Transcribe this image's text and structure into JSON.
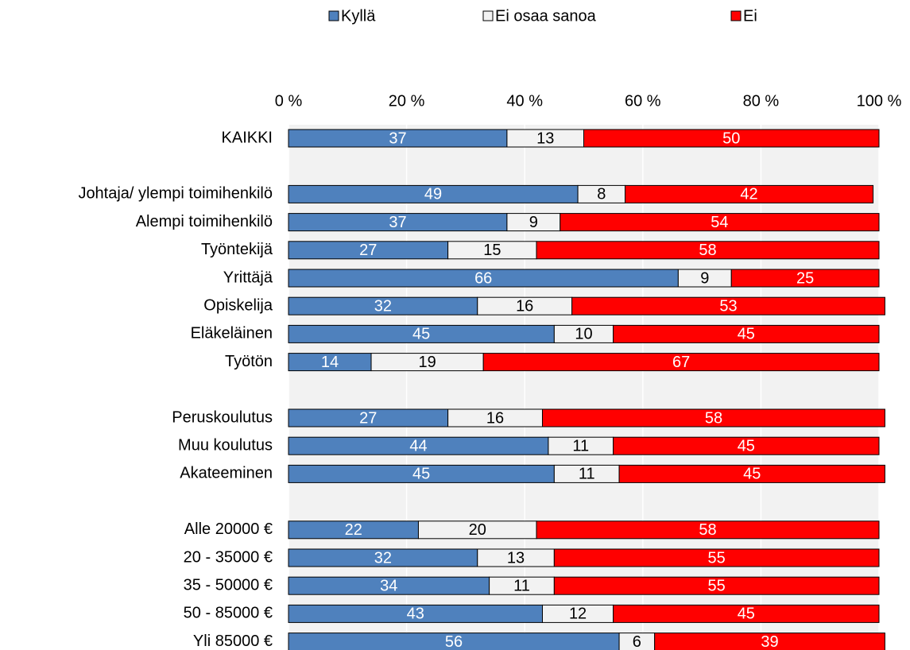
{
  "chart_data": {
    "type": "stacked-bar-horizontal",
    "categories": [
      "KAIKKI",
      null,
      "Johtaja/ ylempi toimihenkilö",
      "Alempi toimihenkilö",
      "Työntekijä",
      "Yrittäjä",
      "Opiskelija",
      "Eläkeläinen",
      "Työtön",
      null,
      "Peruskoulutus",
      "Muu koulutus",
      "Akateeminen",
      null,
      "Alle 20000 €",
      "20 - 35000 €",
      "35 - 50000 €",
      "50 - 85000 €",
      "Yli 85000 €"
    ],
    "series": [
      {
        "name": "Kyllä",
        "color": "#4f81bd",
        "values": [
          37,
          null,
          49,
          37,
          27,
          66,
          32,
          45,
          14,
          null,
          27,
          44,
          45,
          null,
          22,
          32,
          34,
          43,
          56
        ]
      },
      {
        "name": "Ei osaa sanoa",
        "color": "#f2f2f2",
        "values": [
          13,
          null,
          8,
          9,
          15,
          9,
          16,
          10,
          19,
          null,
          16,
          11,
          11,
          null,
          20,
          13,
          11,
          12,
          6
        ]
      },
      {
        "name": "Ei",
        "color": "#ff0000",
        "values": [
          50,
          null,
          42,
          54,
          58,
          25,
          53,
          45,
          67,
          null,
          58,
          45,
          45,
          null,
          58,
          55,
          55,
          45,
          39
        ]
      }
    ],
    "xlim": [
      0,
      100
    ],
    "xticks": [
      {
        "value": 0,
        "label": "0 %"
      },
      {
        "value": 20,
        "label": "20 %"
      },
      {
        "value": 40,
        "label": "40 %"
      },
      {
        "value": 60,
        "label": "60 %"
      },
      {
        "value": 80,
        "label": "80 %"
      },
      {
        "value": 100,
        "label": "100 %"
      }
    ],
    "grid": true,
    "legend": "top"
  }
}
